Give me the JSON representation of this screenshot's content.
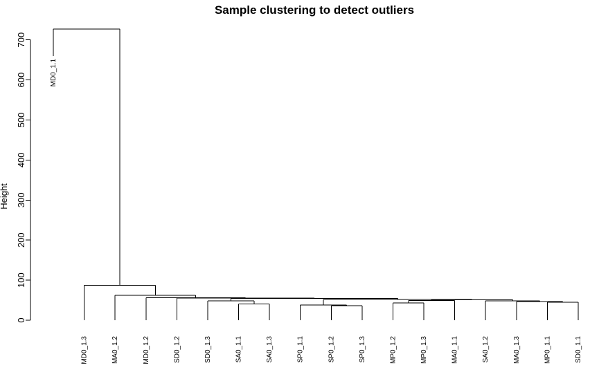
{
  "chart_data": {
    "type": "dendrogram",
    "title": "Sample clustering to detect outliers",
    "xlabel": "",
    "ylabel": "Height",
    "ylim": [
      0,
      760
    ],
    "yticks": [
      0,
      100,
      200,
      300,
      400,
      500,
      600,
      700
    ],
    "leaves": [
      "MD0_1.1",
      "MD0_1.3",
      "MA0_1.2",
      "MD0_1.2",
      "SD0_1.2",
      "SD0_1.3",
      "SA0_1.1",
      "SA0_1.3",
      "SP0_1.1",
      "SP0_1.2",
      "SP0_1.3",
      "MP0_1.2",
      "MP0_1.3",
      "MA0_1.1",
      "SA0_1.2",
      "MA0_1.3",
      "MP0_1.1",
      "SD0_1.1"
    ],
    "leaf_heights": [
      660,
      0,
      0,
      0,
      0,
      0,
      0,
      0,
      0,
      0,
      0,
      0,
      0,
      0,
      0,
      0,
      0,
      0
    ],
    "merges": [
      {
        "id": "n1",
        "left": "SP0_1.2",
        "right": "SP0_1.3",
        "height": 36
      },
      {
        "id": "n2",
        "left": "SP0_1.1",
        "right": "n1",
        "height": 38
      },
      {
        "id": "n3",
        "left": "SA0_1.1",
        "right": "SA0_1.3",
        "height": 41
      },
      {
        "id": "n4",
        "left": "MP0_1.2",
        "right": "MP0_1.3",
        "height": 43
      },
      {
        "id": "n5",
        "left": "MP0_1.1",
        "right": "SD0_1.1",
        "height": 45
      },
      {
        "id": "n6",
        "left": "MA0_1.3",
        "right": "n5",
        "height": 47
      },
      {
        "id": "n7",
        "left": "SA0_1.2",
        "right": "n6",
        "height": 48
      },
      {
        "id": "n8",
        "left": "SD0_1.3",
        "right": "n3",
        "height": 48
      },
      {
        "id": "n9",
        "left": "n4",
        "right": "MA0_1.1",
        "height": 49
      },
      {
        "id": "n10",
        "left": "n9",
        "right": "n7",
        "height": 51
      },
      {
        "id": "n11",
        "left": "n2",
        "right": "n10",
        "height": 52
      },
      {
        "id": "n12",
        "left": "n8",
        "right": "n11",
        "height": 54
      },
      {
        "id": "n13",
        "left": "SD0_1.2",
        "right": "n12",
        "height": 55
      },
      {
        "id": "n14",
        "left": "MD0_1.2",
        "right": "n13",
        "height": 56
      },
      {
        "id": "n15",
        "left": "MA0_1.2",
        "right": "n14",
        "height": 62
      },
      {
        "id": "n16",
        "left": "MD0_1.3",
        "right": "n15",
        "height": 87
      },
      {
        "id": "n17",
        "left": "MD0_1.1",
        "right": "n16",
        "height": 727
      }
    ]
  }
}
